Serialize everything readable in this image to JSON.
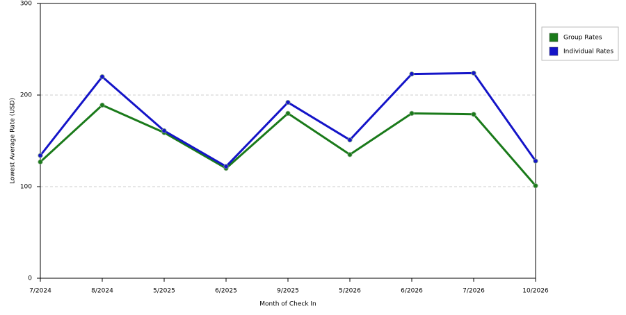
{
  "chart_data": {
    "type": "line",
    "x_label": "Month of Check In",
    "y_label": "Lowest Average Rate (USD)",
    "categories": [
      "7/2024",
      "8/2024",
      "5/2025",
      "6/2025",
      "9/2025",
      "5/2026",
      "6/2026",
      "7/2026",
      "10/2026"
    ],
    "series": [
      {
        "name": "Group Rates",
        "color": "#1a7a1a",
        "values": [
          127,
          189,
          159,
          120,
          180,
          135,
          180,
          179,
          101
        ]
      },
      {
        "name": "Individual Rates",
        "color": "#1414c8",
        "values": [
          134,
          220,
          161,
          122,
          192,
          151,
          223,
          224,
          128
        ]
      }
    ],
    "ylim": [
      0,
      300
    ],
    "yticks": [
      0,
      100,
      200,
      300
    ],
    "grid": true,
    "legend": "right"
  }
}
